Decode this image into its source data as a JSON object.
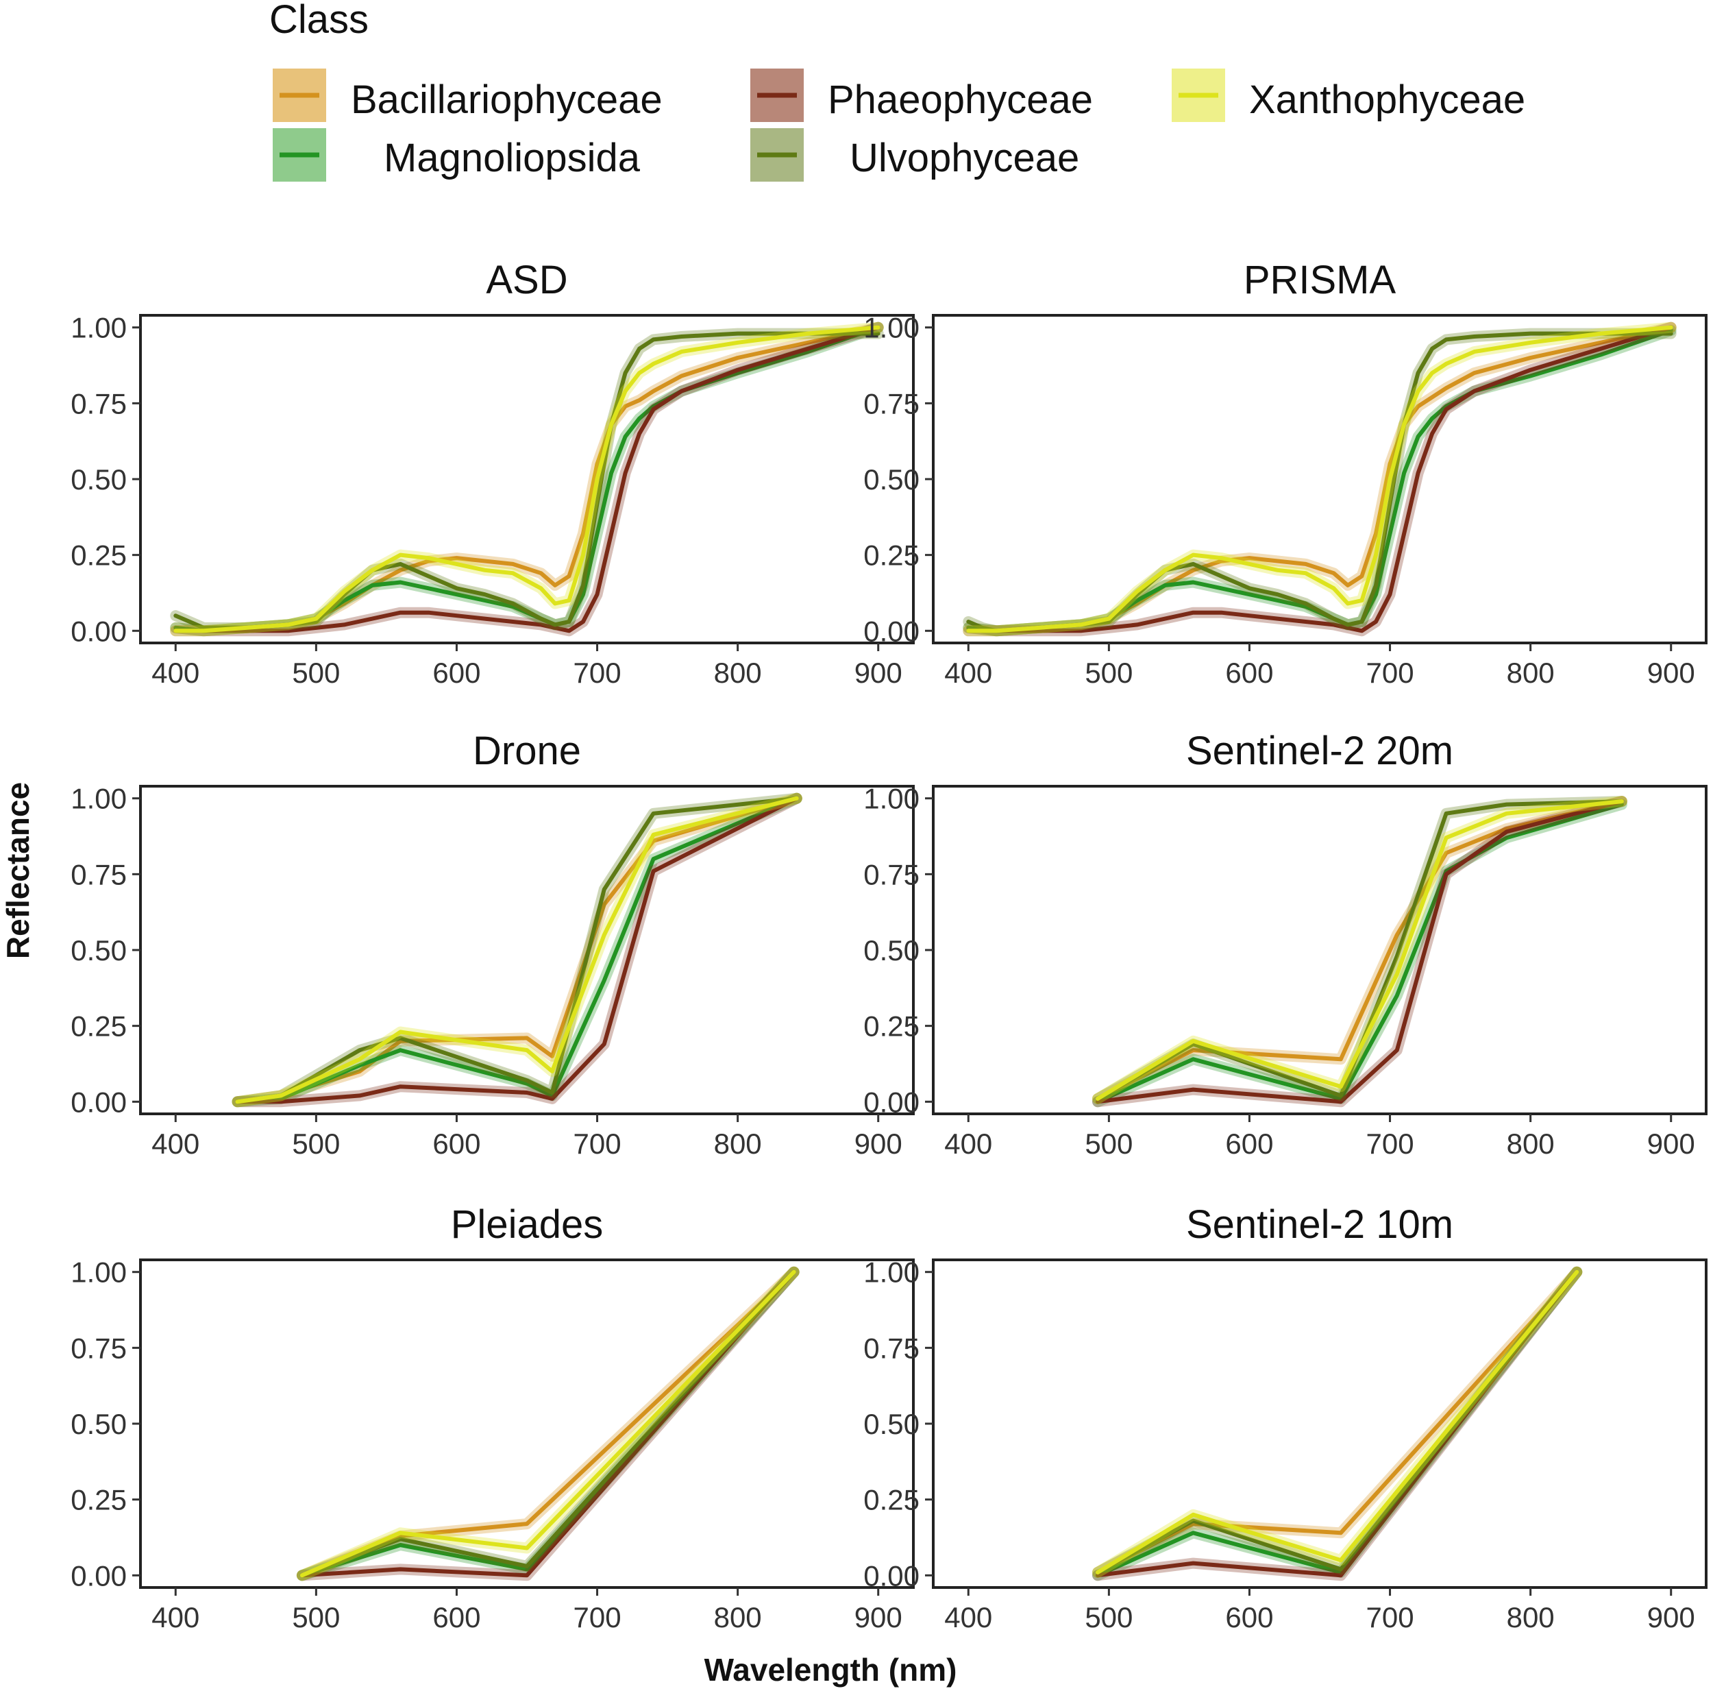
{
  "legend": {
    "title": "Class",
    "items": [
      {
        "label": "Bacillariophyceae",
        "color": "#D4921E",
        "fill": "#E8C27A"
      },
      {
        "label": "Phaeophyceae",
        "color": "#7A2A17",
        "fill": "#B88778"
      },
      {
        "label": "Xanthophyceae",
        "color": "#DDE31D",
        "fill": "#EEF08A"
      },
      {
        "label": "Magnoliopsida",
        "color": "#239423",
        "fill": "#8FCB8C"
      },
      {
        "label": "Ulvophyceae",
        "color": "#5E7A14",
        "fill": "#A9B783"
      }
    ]
  },
  "axes": {
    "xlabel": "Wavelength (nm)",
    "ylabel": "Reflectance"
  },
  "chart_data": {
    "type": "line",
    "xlim": [
      375,
      925
    ],
    "ylim": [
      -0.04,
      1.04
    ],
    "x_ticks": [
      400,
      500,
      600,
      700,
      800,
      900
    ],
    "x_tick_labels": [
      "400",
      "500",
      "600",
      "700",
      "800",
      "900"
    ],
    "y_ticks": [
      0,
      0.25,
      0.5,
      0.75,
      1
    ],
    "y_tick_labels": [
      "0.00",
      "0.25",
      "0.50",
      "0.75",
      "1.00"
    ],
    "grid": false,
    "legend_position": "top",
    "panels": [
      {
        "title": "ASD",
        "series": [
          {
            "name": "Bacillariophyceae",
            "x": [
              400,
              420,
              450,
              480,
              500,
              520,
              540,
              560,
              580,
              600,
              620,
              640,
              660,
              670,
              680,
              690,
              700,
              710,
              720,
              730,
              740,
              760,
              800,
              850,
              900
            ],
            "y": [
              0.01,
              0.0,
              0.01,
              0.02,
              0.04,
              0.09,
              0.15,
              0.2,
              0.23,
              0.24,
              0.23,
              0.22,
              0.19,
              0.15,
              0.18,
              0.32,
              0.55,
              0.68,
              0.74,
              0.76,
              0.79,
              0.84,
              0.9,
              0.95,
              1.0
            ]
          },
          {
            "name": "Magnoliopsida",
            "x": [
              400,
              420,
              450,
              480,
              500,
              520,
              540,
              560,
              580,
              600,
              620,
              640,
              660,
              670,
              680,
              690,
              700,
              710,
              720,
              730,
              740,
              760,
              800,
              850,
              900
            ],
            "y": [
              0.01,
              0.0,
              0.01,
              0.02,
              0.04,
              0.1,
              0.15,
              0.16,
              0.14,
              0.12,
              0.1,
              0.08,
              0.04,
              0.02,
              0.03,
              0.12,
              0.32,
              0.52,
              0.64,
              0.7,
              0.74,
              0.79,
              0.85,
              0.92,
              1.0
            ]
          },
          {
            "name": "Phaeophyceae",
            "x": [
              400,
              420,
              450,
              480,
              500,
              520,
              540,
              560,
              580,
              600,
              620,
              640,
              660,
              670,
              680,
              690,
              700,
              710,
              720,
              730,
              740,
              760,
              800,
              850,
              900
            ],
            "y": [
              0.0,
              0.0,
              0.0,
              0.0,
              0.01,
              0.02,
              0.04,
              0.06,
              0.06,
              0.05,
              0.04,
              0.03,
              0.02,
              0.01,
              0.0,
              0.03,
              0.12,
              0.32,
              0.52,
              0.65,
              0.73,
              0.79,
              0.86,
              0.93,
              1.0
            ]
          },
          {
            "name": "Ulvophyceae",
            "x": [
              400,
              410,
              420,
              450,
              480,
              500,
              520,
              540,
              560,
              580,
              600,
              620,
              640,
              660,
              670,
              680,
              690,
              700,
              710,
              720,
              730,
              740,
              760,
              800,
              850,
              900
            ],
            "y": [
              0.05,
              0.03,
              0.01,
              0.01,
              0.02,
              0.03,
              0.12,
              0.2,
              0.22,
              0.18,
              0.14,
              0.12,
              0.09,
              0.04,
              0.02,
              0.03,
              0.15,
              0.42,
              0.68,
              0.85,
              0.93,
              0.96,
              0.97,
              0.98,
              0.98,
              0.98
            ]
          },
          {
            "name": "Xanthophyceae",
            "x": [
              400,
              420,
              450,
              480,
              500,
              520,
              540,
              560,
              580,
              600,
              620,
              640,
              660,
              670,
              680,
              690,
              700,
              710,
              720,
              730,
              740,
              760,
              800,
              850,
              900
            ],
            "y": [
              0.0,
              0.0,
              0.01,
              0.02,
              0.04,
              0.13,
              0.2,
              0.25,
              0.24,
              0.22,
              0.2,
              0.19,
              0.14,
              0.09,
              0.1,
              0.25,
              0.5,
              0.68,
              0.79,
              0.85,
              0.88,
              0.92,
              0.95,
              0.98,
              1.0
            ]
          }
        ]
      },
      {
        "title": "PRISMA",
        "series": [
          {
            "name": "Bacillariophyceae",
            "x": [
              400,
              420,
              450,
              480,
              500,
              520,
              540,
              560,
              580,
              600,
              620,
              640,
              660,
              670,
              680,
              690,
              700,
              710,
              720,
              730,
              740,
              760,
              800,
              850,
              900
            ],
            "y": [
              0.01,
              0.0,
              0.01,
              0.02,
              0.04,
              0.09,
              0.15,
              0.2,
              0.23,
              0.24,
              0.23,
              0.22,
              0.19,
              0.15,
              0.18,
              0.32,
              0.55,
              0.68,
              0.74,
              0.77,
              0.8,
              0.85,
              0.9,
              0.95,
              1.0
            ]
          },
          {
            "name": "Magnoliopsida",
            "x": [
              400,
              420,
              450,
              480,
              500,
              520,
              540,
              560,
              580,
              600,
              620,
              640,
              660,
              670,
              680,
              690,
              700,
              710,
              720,
              730,
              740,
              760,
              800,
              850,
              900
            ],
            "y": [
              0.01,
              0.0,
              0.01,
              0.02,
              0.04,
              0.1,
              0.15,
              0.16,
              0.14,
              0.12,
              0.1,
              0.08,
              0.04,
              0.02,
              0.03,
              0.12,
              0.32,
              0.52,
              0.64,
              0.7,
              0.74,
              0.79,
              0.84,
              0.91,
              0.99
            ]
          },
          {
            "name": "Phaeophyceae",
            "x": [
              400,
              420,
              450,
              480,
              500,
              520,
              540,
              560,
              580,
              600,
              620,
              640,
              660,
              670,
              680,
              690,
              700,
              710,
              720,
              730,
              740,
              760,
              800,
              850,
              900
            ],
            "y": [
              0.0,
              0.0,
              0.0,
              0.0,
              0.01,
              0.02,
              0.04,
              0.06,
              0.06,
              0.05,
              0.04,
              0.03,
              0.02,
              0.01,
              0.0,
              0.03,
              0.12,
              0.32,
              0.52,
              0.65,
              0.73,
              0.79,
              0.86,
              0.93,
              1.0
            ]
          },
          {
            "name": "Ulvophyceae",
            "x": [
              400,
              410,
              420,
              450,
              480,
              500,
              520,
              540,
              560,
              580,
              600,
              620,
              640,
              660,
              670,
              680,
              690,
              700,
              710,
              720,
              730,
              740,
              760,
              800,
              850,
              900
            ],
            "y": [
              0.03,
              0.01,
              0.0,
              0.01,
              0.02,
              0.03,
              0.12,
              0.2,
              0.22,
              0.18,
              0.14,
              0.12,
              0.09,
              0.04,
              0.02,
              0.03,
              0.15,
              0.42,
              0.68,
              0.85,
              0.93,
              0.96,
              0.97,
              0.98,
              0.98,
              0.98
            ]
          },
          {
            "name": "Xanthophyceae",
            "x": [
              400,
              420,
              450,
              480,
              500,
              520,
              540,
              560,
              580,
              600,
              620,
              640,
              660,
              670,
              680,
              690,
              700,
              710,
              720,
              730,
              740,
              760,
              800,
              850,
              900
            ],
            "y": [
              0.0,
              0.0,
              0.01,
              0.02,
              0.04,
              0.13,
              0.2,
              0.25,
              0.24,
              0.22,
              0.2,
              0.19,
              0.14,
              0.09,
              0.1,
              0.25,
              0.5,
              0.68,
              0.79,
              0.85,
              0.88,
              0.92,
              0.95,
              0.98,
              1.0
            ]
          }
        ]
      },
      {
        "title": "Drone",
        "series": [
          {
            "name": "Bacillariophyceae",
            "x": [
              444,
              475,
              531,
              560,
              650,
              668,
              705,
              740,
              842
            ],
            "y": [
              0.0,
              0.02,
              0.1,
              0.2,
              0.21,
              0.15,
              0.65,
              0.86,
              1.0
            ]
          },
          {
            "name": "Magnoliopsida",
            "x": [
              444,
              475,
              531,
              560,
              650,
              668,
              705,
              740,
              842
            ],
            "y": [
              0.0,
              0.01,
              0.12,
              0.17,
              0.06,
              0.02,
              0.4,
              0.8,
              1.0
            ]
          },
          {
            "name": "Phaeophyceae",
            "x": [
              444,
              475,
              531,
              560,
              650,
              668,
              705,
              740,
              842
            ],
            "y": [
              0.0,
              0.0,
              0.02,
              0.05,
              0.03,
              0.01,
              0.19,
              0.76,
              1.0
            ]
          },
          {
            "name": "Ulvophyceae",
            "x": [
              444,
              475,
              531,
              560,
              650,
              668,
              705,
              740,
              842
            ],
            "y": [
              0.0,
              0.02,
              0.17,
              0.21,
              0.07,
              0.03,
              0.7,
              0.95,
              1.0
            ]
          },
          {
            "name": "Xanthophyceae",
            "x": [
              444,
              475,
              531,
              560,
              650,
              668,
              705,
              740,
              842
            ],
            "y": [
              0.0,
              0.02,
              0.14,
              0.23,
              0.17,
              0.1,
              0.55,
              0.88,
              1.0
            ]
          }
        ]
      },
      {
        "title": "Sentinel-2 20m",
        "series": [
          {
            "name": "Bacillariophyceae",
            "x": [
              492,
              560,
              665,
              705,
              740,
              783,
              865
            ],
            "y": [
              0.01,
              0.17,
              0.14,
              0.55,
              0.82,
              0.9,
              0.99
            ]
          },
          {
            "name": "Magnoliopsida",
            "x": [
              492,
              560,
              665,
              705,
              740,
              783,
              865
            ],
            "y": [
              0.0,
              0.14,
              0.01,
              0.35,
              0.76,
              0.87,
              0.98
            ]
          },
          {
            "name": "Phaeophyceae",
            "x": [
              492,
              560,
              665,
              705,
              740,
              783,
              865
            ],
            "y": [
              0.0,
              0.04,
              0.0,
              0.17,
              0.75,
              0.89,
              0.99
            ]
          },
          {
            "name": "Ulvophyceae",
            "x": [
              492,
              560,
              665,
              705,
              740,
              783,
              865
            ],
            "y": [
              0.01,
              0.19,
              0.02,
              0.48,
              0.95,
              0.98,
              0.99
            ]
          },
          {
            "name": "Xanthophyceae",
            "x": [
              492,
              560,
              665,
              705,
              740,
              783,
              865
            ],
            "y": [
              0.01,
              0.2,
              0.05,
              0.42,
              0.87,
              0.95,
              0.99
            ]
          }
        ]
      },
      {
        "title": "Pleiades",
        "series": [
          {
            "name": "Bacillariophyceae",
            "x": [
              490,
              560,
              650,
              840
            ],
            "y": [
              0.0,
              0.13,
              0.17,
              1.0
            ]
          },
          {
            "name": "Magnoliopsida",
            "x": [
              490,
              560,
              650,
              840
            ],
            "y": [
              0.0,
              0.1,
              0.02,
              1.0
            ]
          },
          {
            "name": "Phaeophyceae",
            "x": [
              490,
              560,
              650,
              840
            ],
            "y": [
              0.0,
              0.02,
              0.0,
              1.0
            ]
          },
          {
            "name": "Ulvophyceae",
            "x": [
              490,
              560,
              650,
              840
            ],
            "y": [
              0.0,
              0.12,
              0.03,
              1.0
            ]
          },
          {
            "name": "Xanthophyceae",
            "x": [
              490,
              560,
              650,
              840
            ],
            "y": [
              0.0,
              0.14,
              0.09,
              1.0
            ]
          }
        ]
      },
      {
        "title": "Sentinel-2 10m",
        "series": [
          {
            "name": "Bacillariophyceae",
            "x": [
              492,
              560,
              665,
              833
            ],
            "y": [
              0.01,
              0.17,
              0.14,
              1.0
            ]
          },
          {
            "name": "Magnoliopsida",
            "x": [
              492,
              560,
              665,
              833
            ],
            "y": [
              0.0,
              0.14,
              0.01,
              1.0
            ]
          },
          {
            "name": "Phaeophyceae",
            "x": [
              492,
              560,
              665,
              833
            ],
            "y": [
              0.0,
              0.04,
              0.0,
              1.0
            ]
          },
          {
            "name": "Ulvophyceae",
            "x": [
              492,
              560,
              665,
              833
            ],
            "y": [
              0.01,
              0.18,
              0.02,
              1.0
            ]
          },
          {
            "name": "Xanthophyceae",
            "x": [
              492,
              560,
              665,
              833
            ],
            "y": [
              0.01,
              0.2,
              0.05,
              1.0
            ]
          }
        ]
      }
    ]
  }
}
